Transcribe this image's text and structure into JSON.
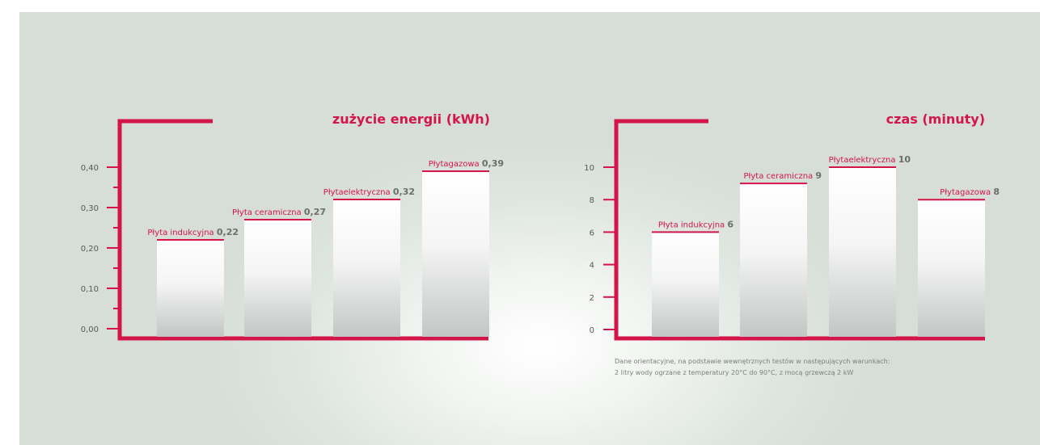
{
  "colors": {
    "accent": "#d3154a",
    "bar_top": "#ffffff",
    "bar_bottom": "#c3c6c5",
    "text": "#555a57",
    "value": "#6b6e6c"
  },
  "chart_data": [
    {
      "type": "bar",
      "title": "zużycie energii (kWh)",
      "categories": [
        "Płyta indukcyjna",
        "Płyta ceramiczna",
        "Płytaelektryczna",
        "Płytagazowa"
      ],
      "values": [
        0.22,
        0.27,
        0.32,
        0.39
      ],
      "value_labels": [
        "0,22",
        "0,27",
        "0,32",
        "0,39"
      ],
      "yticks": [
        "0,00",
        "0,10",
        "0,20",
        "0,30",
        "0,40"
      ],
      "ylim": [
        0,
        0.4
      ],
      "grid": false,
      "legend": "none"
    },
    {
      "type": "bar",
      "title": "czas (minuty)",
      "categories": [
        "Płyta indukcyjna",
        "Płyta ceramiczna",
        "Płytaelektryczna",
        "Płytagazowa"
      ],
      "values": [
        6,
        9,
        10,
        8
      ],
      "value_labels": [
        "6",
        "9",
        "10",
        "8"
      ],
      "yticks": [
        "0",
        "2",
        "4",
        "6",
        "8",
        "10"
      ],
      "ylim": [
        0,
        10
      ],
      "grid": false,
      "legend": "none"
    }
  ],
  "footnote": {
    "line1": "Dane orientacyjne, na podstawie wewnętrznych testów w następujących warunkach:",
    "line2": "2 litry wody ogrzane z temperatury 20°C do 90°C, z mocą grzewczą 2 kW"
  }
}
